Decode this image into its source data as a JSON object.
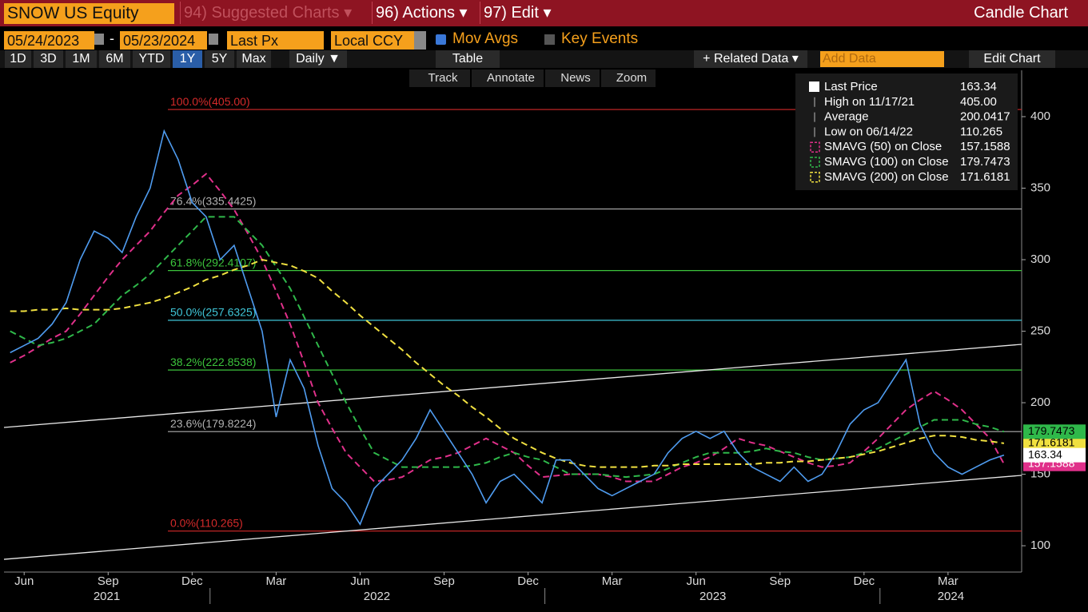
{
  "header": {
    "security": "SNOW US Equity",
    "menus": [
      "94) Suggested Charts ▾",
      "96) Actions ▾",
      "97) Edit ▾"
    ],
    "chart_type": "Candle Chart"
  },
  "settings": {
    "start_date": "05/24/2023",
    "separator": "-",
    "end_date": "05/23/2024",
    "field": "Last Px",
    "currency": "Local CCY",
    "mov_avgs": "Mov Avgs",
    "key_events": "Key Events"
  },
  "toolbar": {
    "periods": [
      "1D",
      "3D",
      "1M",
      "6M",
      "YTD",
      "1Y",
      "5Y",
      "Max"
    ],
    "active_period_index": 5,
    "frequency": "Daily ▼",
    "table": "Table",
    "related_data": "+ Related Data ▾",
    "add_data": "Add Data",
    "edit_chart": "Edit Chart",
    "tools": [
      "Track",
      "Annotate",
      "News",
      "Zoom"
    ]
  },
  "chart_data": {
    "type": "line",
    "x": [
      5,
      5.5,
      6,
      6.5,
      7,
      7.5,
      8,
      8.5,
      9,
      9.5,
      10,
      10.5,
      11,
      11.5,
      12,
      12.5,
      13,
      13.5,
      14,
      14.5,
      15,
      15.5,
      16,
      16.5,
      17,
      17.5,
      18,
      18.5,
      19,
      19.5,
      20,
      20.5,
      21,
      21.5,
      22,
      22.5,
      23,
      23.5,
      24,
      24.5,
      25,
      25.5,
      26,
      26.5,
      27,
      27.5,
      28,
      28.5,
      29,
      29.5,
      30,
      30.5,
      31,
      31.5,
      32,
      32.5,
      33,
      33.5,
      34,
      34.5,
      35,
      35.5,
      36,
      36.5,
      37,
      37.5,
      38,
      38.5,
      39,
      39.5,
      40,
      40.5
    ],
    "series": [
      {
        "name": "Last Price",
        "color": "#4f9cf0",
        "dashed": false,
        "values": [
          235,
          240,
          245,
          255,
          270,
          300,
          320,
          315,
          305,
          330,
          350,
          390,
          370,
          340,
          330,
          300,
          310,
          280,
          250,
          190,
          230,
          210,
          170,
          140,
          130,
          115,
          140,
          150,
          160,
          175,
          195,
          180,
          165,
          150,
          130,
          145,
          150,
          140,
          130,
          160,
          160,
          150,
          140,
          135,
          140,
          145,
          150,
          165,
          175,
          180,
          175,
          180,
          165,
          155,
          150,
          145,
          155,
          145,
          150,
          165,
          185,
          195,
          200,
          215,
          230,
          185,
          165,
          155,
          150,
          155,
          160,
          163.34
        ]
      },
      {
        "name": "SMAVG (50) on Close",
        "color": "#e0308a",
        "dashed": true,
        "values": [
          228,
          233,
          239,
          245,
          250,
          262,
          275,
          288,
          300,
          310,
          320,
          333,
          345,
          352,
          360,
          348,
          335,
          318,
          300,
          278,
          255,
          228,
          200,
          182,
          165,
          155,
          145,
          146,
          148,
          154,
          160,
          162,
          165,
          170,
          175,
          170,
          165,
          156,
          148,
          149,
          150,
          150,
          150,
          148,
          145,
          145,
          145,
          150,
          155,
          158,
          162,
          168,
          175,
          172,
          170,
          166,
          162,
          158,
          155,
          156,
          158,
          166,
          175,
          185,
          195,
          202,
          208,
          202,
          195,
          185,
          175,
          157.1588
        ]
      },
      {
        "name": "SMAVG (100) on Close",
        "color": "#2fb84a",
        "dashed": true,
        "values": [
          250,
          245,
          240,
          242,
          245,
          250,
          255,
          265,
          275,
          282,
          290,
          300,
          310,
          320,
          330,
          330,
          330,
          320,
          310,
          295,
          280,
          260,
          240,
          220,
          200,
          182,
          165,
          160,
          155,
          155,
          155,
          155,
          155,
          156,
          158,
          162,
          165,
          162,
          160,
          155,
          150,
          150,
          150,
          149,
          148,
          149,
          150,
          154,
          158,
          162,
          165,
          165,
          165,
          166,
          168,
          166,
          165,
          162,
          160,
          161,
          162,
          165,
          168,
          173,
          178,
          183,
          188,
          188,
          188,
          185,
          183,
          179.7473
        ]
      },
      {
        "name": "SMAVG (200) on Close",
        "color": "#f0e040",
        "dashed": true,
        "values": [
          264,
          264,
          265,
          265,
          266,
          265,
          265,
          265,
          266,
          268,
          270,
          273,
          277,
          281,
          286,
          289,
          293,
          296,
          300,
          298,
          296,
          292,
          287,
          278,
          270,
          261,
          253,
          245,
          237,
          228,
          220,
          212,
          205,
          197,
          190,
          182,
          175,
          170,
          165,
          161,
          158,
          156,
          155,
          155,
          155,
          155,
          156,
          156,
          157,
          157,
          157,
          157,
          157,
          157,
          158,
          158,
          159,
          159,
          160,
          161,
          162,
          164,
          166,
          169,
          172,
          175,
          177,
          177,
          176,
          174,
          173,
          171.6181
        ]
      }
    ],
    "stats": [
      {
        "name": "High on 11/17/21",
        "value": 405,
        "label": "405.00"
      },
      {
        "name": "Average",
        "value": 200.0417
      },
      {
        "name": "Low on 06/14/22",
        "value": 110.265
      }
    ],
    "fib_levels": [
      {
        "value": 405,
        "label": "100.0%(405.00)",
        "color": "#d42a2a"
      },
      {
        "value": 335.4425,
        "label": "76.4%(335.4425)",
        "color": "#b0b0b0"
      },
      {
        "value": 292.4107,
        "label": "61.8%(292.4107)",
        "color": "#3cc43c"
      },
      {
        "value": 257.6325,
        "label": "50.0%(257.6325)",
        "color": "#3fc6d8"
      },
      {
        "value": 222.8538,
        "label": "38.2%(222.8538)",
        "color": "#3cc43c"
      },
      {
        "value": 179.8224,
        "label": "23.6%(179.8224)",
        "color": "#b0b0b0"
      },
      {
        "value": 110.265,
        "label": "0.0%(110.265)",
        "color": "#d42a2a"
      }
    ],
    "trendlines": [
      {
        "x": [
          4.78,
          41.13
        ],
        "y": [
          182.7,
          240.8
        ],
        "color": "#e8e8e8"
      },
      {
        "x": [
          4.78,
          41.13
        ],
        "y": [
          90.5,
          149.2
        ],
        "color": "#e8e8e8"
      }
    ],
    "xlim": [
      4.78,
      41.13
    ],
    "xticks": [
      {
        "value": 5.5,
        "label": "Jun"
      },
      {
        "value": 8.5,
        "label": "Sep"
      },
      {
        "value": 11.5,
        "label": "Dec"
      },
      {
        "value": 14.5,
        "label": "Mar"
      },
      {
        "value": 17.5,
        "label": "Jun"
      },
      {
        "value": 20.5,
        "label": "Sep"
      },
      {
        "value": 23.5,
        "label": "Dec"
      },
      {
        "value": 26.5,
        "label": "Mar"
      },
      {
        "value": 29.5,
        "label": "Jun"
      },
      {
        "value": 32.5,
        "label": "Sep"
      },
      {
        "value": 35.5,
        "label": "Dec"
      },
      {
        "value": 38.5,
        "label": "Mar"
      }
    ],
    "year_ticks": [
      {
        "value": 8.45,
        "label": "2021"
      },
      {
        "value": 18.1,
        "label": "2022"
      },
      {
        "value": 30.1,
        "label": "2023"
      },
      {
        "value": 38.6,
        "label": "2024"
      }
    ],
    "year_dividers": [
      12.14,
      24.1,
      36.07
    ],
    "ylim": [
      81.6,
      432.4
    ],
    "yticks": [
      100,
      150,
      200,
      250,
      300,
      350,
      400
    ]
  }
}
